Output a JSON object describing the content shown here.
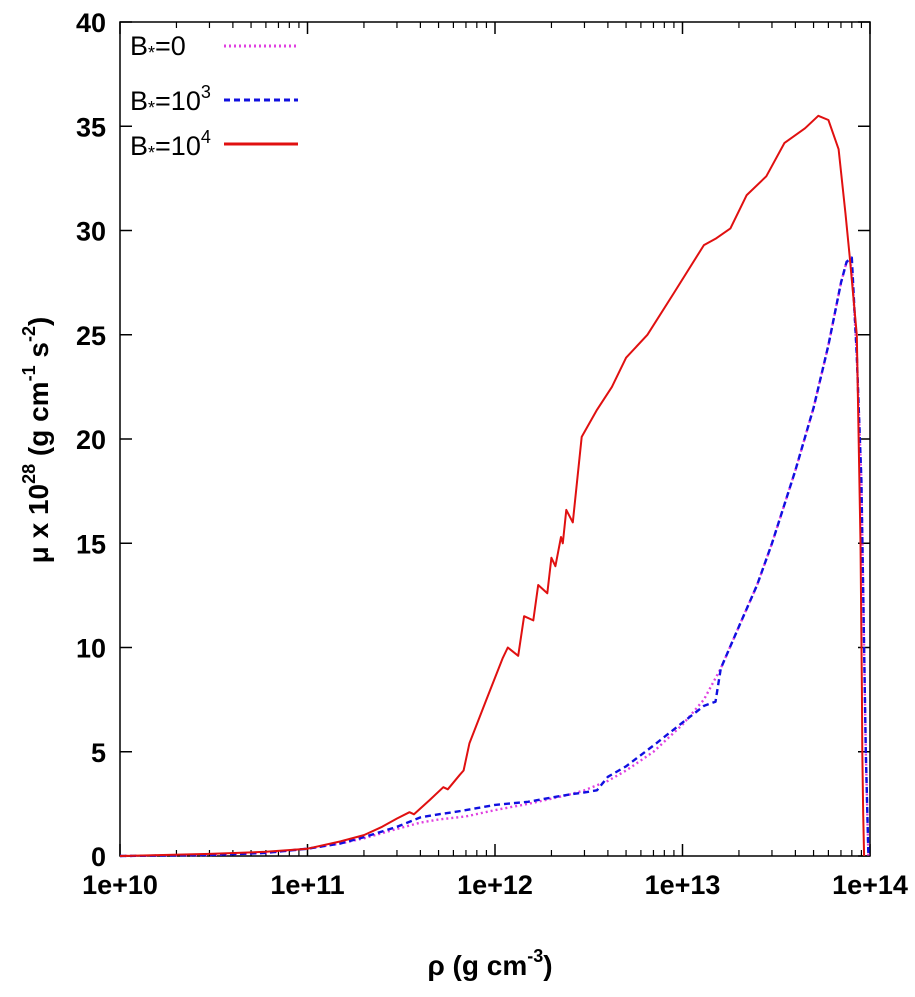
{
  "chart_data": {
    "type": "line",
    "xscale": "log",
    "xlim": [
      10000000000.0,
      100000000000000.0
    ],
    "ylim": [
      0,
      40
    ],
    "xticks": [
      {
        "value": 10000000000.0,
        "label": "1e+10"
      },
      {
        "value": 100000000000.0,
        "label": "1e+11"
      },
      {
        "value": 1000000000000.0,
        "label": "1e+12"
      },
      {
        "value": 10000000000000.0,
        "label": "1e+13"
      },
      {
        "value": 100000000000000.0,
        "label": "1e+14"
      }
    ],
    "yticks": [
      {
        "value": 0,
        "label": "0"
      },
      {
        "value": 5,
        "label": "5"
      },
      {
        "value": 10,
        "label": "10"
      },
      {
        "value": 15,
        "label": "15"
      },
      {
        "value": 20,
        "label": "20"
      },
      {
        "value": 25,
        "label": "25"
      },
      {
        "value": 30,
        "label": "30"
      },
      {
        "value": 35,
        "label": "35"
      },
      {
        "value": 40,
        "label": "40"
      }
    ],
    "xlabel": {
      "main": "ρ (g cm",
      "sup": "-3",
      "tail": ")"
    },
    "ylabel": {
      "p1": "μ x 10",
      "sup1": "28",
      "p2": " (g cm",
      "sup2": "-1",
      "p3": " s",
      "sup3": "-2",
      "p4": ")"
    },
    "legend_position": "top-left",
    "grid": false,
    "series": [
      {
        "legend": {
          "main": "B",
          "sub": "*",
          "tail": "=0",
          "sup": ""
        },
        "color": "#e040e0",
        "style": "dotted",
        "x": [
          10000000000.0,
          30000000000.0,
          60000000000.0,
          100000000000.0,
          150000000000.0,
          200000000000.0,
          300000000000.0,
          400000000000.0,
          500000000000.0,
          700000000000.0,
          1000000000000.0,
          1500000000000.0,
          2000000000000.0,
          2500000000000.0,
          3000000000000.0,
          4000000000000.0,
          5000000000000.0,
          7000000000000.0,
          10000000000000.0,
          13000000000000.0,
          16000000000000.0,
          20000000000000.0,
          25000000000000.0,
          30000000000000.0,
          40000000000000.0,
          50000000000000.0,
          60000000000000.0,
          70000000000000.0,
          75000000000000.0,
          80000000000000.0,
          85000000000000.0,
          90000000000000.0,
          95000000000000.0,
          98000000000000.0
        ],
        "y": [
          0,
          0.05,
          0.15,
          0.35,
          0.6,
          0.85,
          1.3,
          1.6,
          1.75,
          1.9,
          2.2,
          2.5,
          2.75,
          2.95,
          3.15,
          3.6,
          4.1,
          5.0,
          6.3,
          7.5,
          9.0,
          11.0,
          13.0,
          15.0,
          18.5,
          21.5,
          24.5,
          27.5,
          28.5,
          28.3,
          24.0,
          18.0,
          5.0,
          0
        ]
      },
      {
        "legend": {
          "main": "B",
          "sub": "*",
          "tail": "=10",
          "sup": "3"
        },
        "color": "#1010e0",
        "style": "dashed",
        "x": [
          10000000000.0,
          30000000000.0,
          60000000000.0,
          100000000000.0,
          150000000000.0,
          200000000000.0,
          300000000000.0,
          400000000000.0,
          500000000000.0,
          600000000000.0,
          700000000000.0,
          1000000000000.0,
          1500000000000.0,
          2000000000000.0,
          2500000000000.0,
          3000000000000.0,
          3500000000000.0,
          4000000000000.0,
          5000000000000.0,
          7000000000000.0,
          10000000000000.0,
          13000000000000.0,
          15000000000000.0,
          16000000000000.0,
          20000000000000.0,
          25000000000000.0,
          30000000000000.0,
          40000000000000.0,
          50000000000000.0,
          60000000000000.0,
          70000000000000.0,
          75000000000000.0,
          80000000000000.0,
          85000000000000.0,
          90000000000000.0,
          95000000000000.0,
          98000000000000.0
        ],
        "y": [
          0,
          0.05,
          0.15,
          0.35,
          0.6,
          0.9,
          1.4,
          1.85,
          2.0,
          2.1,
          2.2,
          2.45,
          2.6,
          2.8,
          2.95,
          3.05,
          3.15,
          3.8,
          4.3,
          5.3,
          6.4,
          7.2,
          7.4,
          9.0,
          11.0,
          13.0,
          15.0,
          18.5,
          21.5,
          24.5,
          27.5,
          28.5,
          28.7,
          24.0,
          18.0,
          5.0,
          0
        ]
      },
      {
        "legend": {
          "main": "B",
          "sub": "*",
          "tail": "=10",
          "sup": "4"
        },
        "color": "#e01010",
        "style": "solid",
        "x": [
          10000000000.0,
          30000000000.0,
          60000000000.0,
          100000000000.0,
          150000000000.0,
          200000000000.0,
          250000000000.0,
          300000000000.0,
          350000000000.0,
          370000000000.0,
          450000000000.0,
          530000000000.0,
          560000000000.0,
          650000000000.0,
          680000000000.0,
          730000000000.0,
          900000000000.0,
          1100000000000.0,
          1170000000000.0,
          1330000000000.0,
          1430000000000.0,
          1600000000000.0,
          1700000000000.0,
          1900000000000.0,
          2000000000000.0,
          2100000000000.0,
          2250000000000.0,
          2300000000000.0,
          2400000000000.0,
          2600000000000.0,
          2900000000000.0,
          3500000000000.0,
          4200000000000.0,
          5000000000000.0,
          6500000000000.0,
          9000000000000.0,
          13000000000000.0,
          15000000000000.0,
          18000000000000.0,
          22000000000000.0,
          28000000000000.0,
          35000000000000.0,
          45000000000000.0,
          53000000000000.0,
          60000000000000.0,
          68000000000000.0,
          74000000000000.0,
          78000000000000.0,
          85000000000000.0,
          89000000000000.0,
          90500000000000.0,
          91000000000000.0,
          92000000000000.0,
          93000000000000.0
        ],
        "y": [
          0,
          0.1,
          0.2,
          0.35,
          0.7,
          1.0,
          1.4,
          1.8,
          2.1,
          2.0,
          2.7,
          3.3,
          3.2,
          3.9,
          4.1,
          5.4,
          7.5,
          9.5,
          10.0,
          9.6,
          11.5,
          11.3,
          13.0,
          12.6,
          14.3,
          13.9,
          15.3,
          15.0,
          16.6,
          16.0,
          20.1,
          21.4,
          22.5,
          23.9,
          25.0,
          27.0,
          29.3,
          29.6,
          30.1,
          31.7,
          32.6,
          34.2,
          34.9,
          35.5,
          35.3,
          33.9,
          30.8,
          28.7,
          25.0,
          15.0,
          8.0,
          5.0,
          2.0,
          0
        ]
      }
    ]
  }
}
